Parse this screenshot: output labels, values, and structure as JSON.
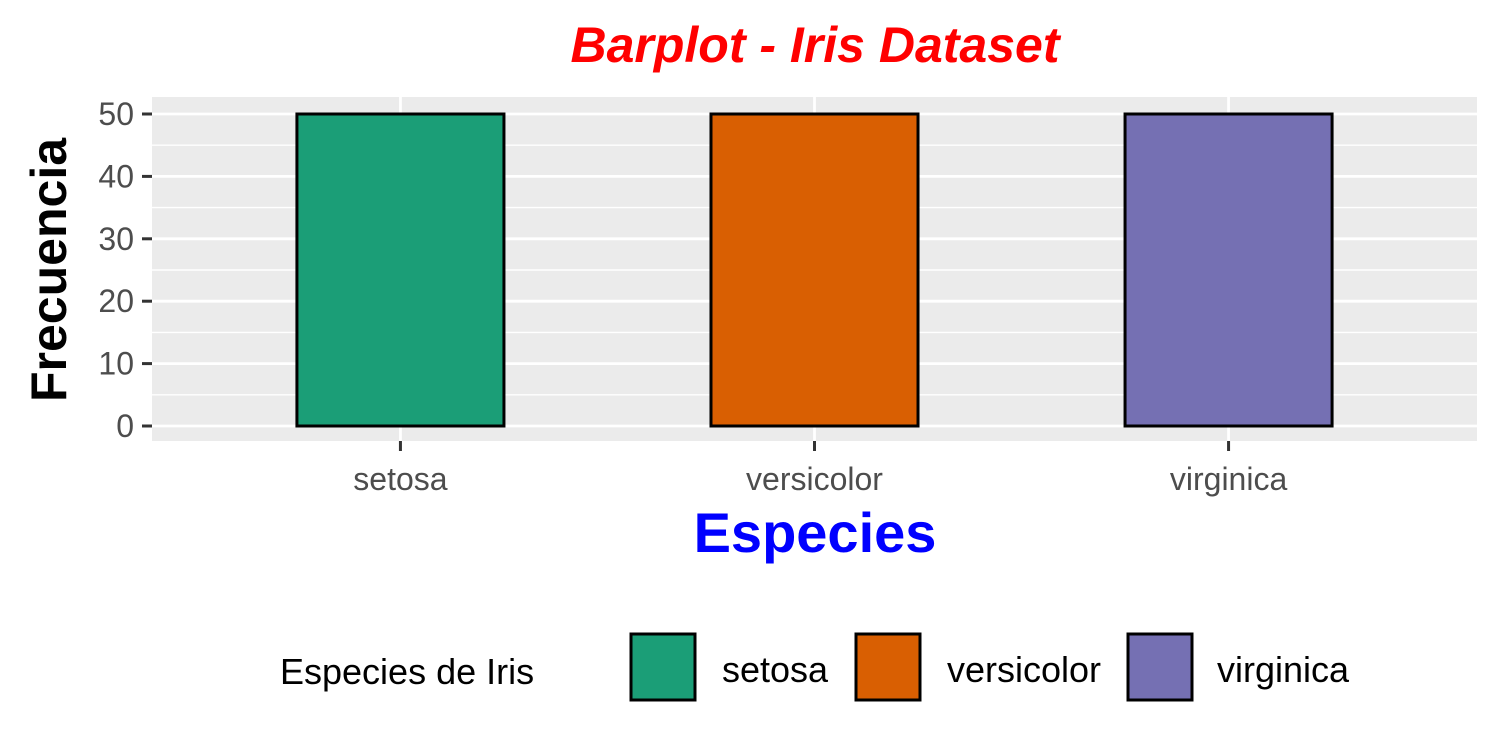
{
  "chart_data": {
    "type": "bar",
    "title": "Barplot - Iris Dataset",
    "xlabel": "Especies",
    "ylabel": "Frecuencia",
    "categories": [
      "setosa",
      "versicolor",
      "virginica"
    ],
    "values": [
      50,
      50,
      50
    ],
    "ylim": [
      0,
      50
    ],
    "yticks": [
      0,
      10,
      20,
      30,
      40,
      50
    ],
    "grid": true,
    "legend": {
      "title": "Especies de Iris",
      "placement": "bottom",
      "entries": [
        "setosa",
        "versicolor",
        "virginica"
      ]
    },
    "colors": {
      "bars": [
        "#1b9e77",
        "#d95f02",
        "#7570b3"
      ],
      "title": "#ff0000",
      "xlabel": "#0000ff",
      "ylabel": "#000000",
      "panel_background": "#ebebeb",
      "gridlines": "#ffffff",
      "bar_outline": "#000000"
    }
  }
}
